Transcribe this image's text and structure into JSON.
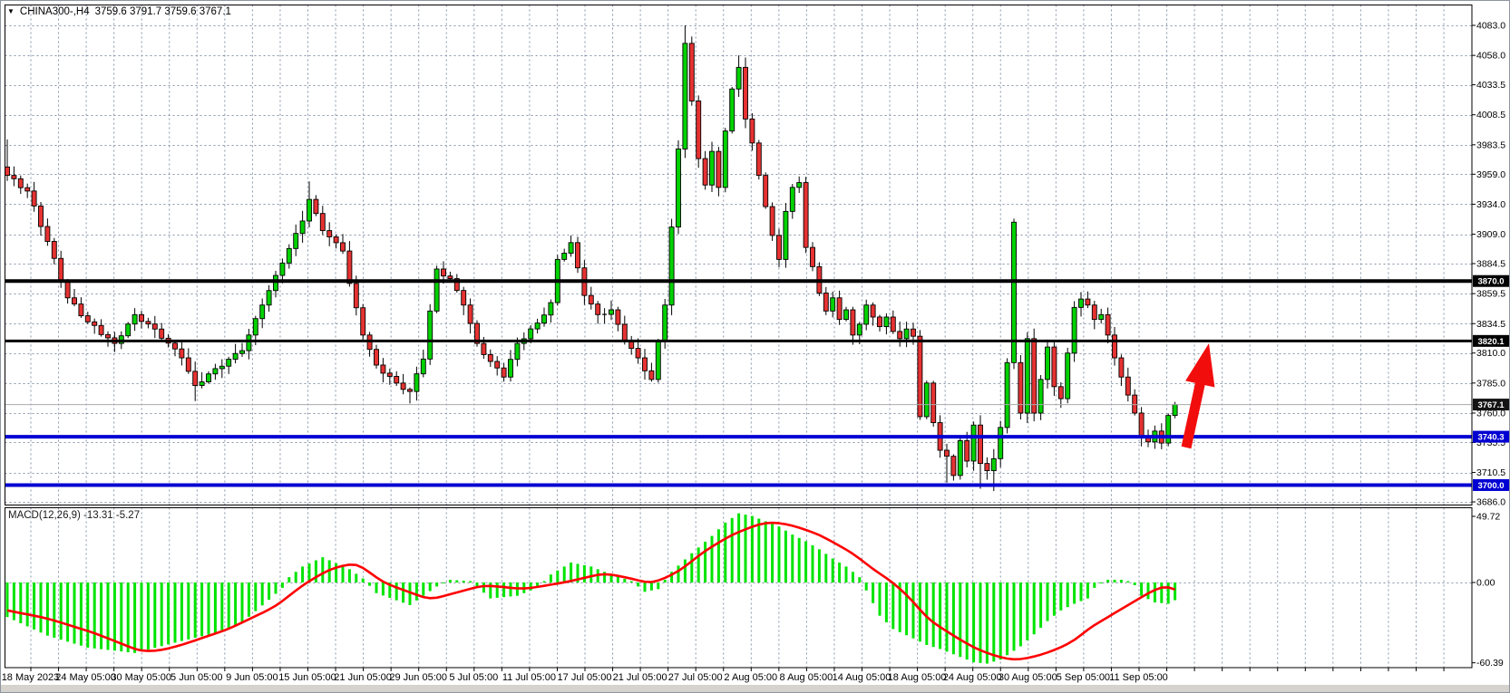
{
  "header": {
    "symbol_period": "CHINA300-,H4",
    "ohlc": "3759.6 3791.7 3759.6 3767.1",
    "open": 3759.6,
    "high": 3791.7,
    "low": 3759.6,
    "close": 3767.1
  },
  "price_axis": {
    "ticks": [
      "4083.0",
      "4058.0",
      "4033.5",
      "4008.5",
      "3983.5",
      "3959.0",
      "3934.0",
      "3909.0",
      "3884.5",
      "3859.5",
      "3834.5",
      "3810.0",
      "3785.0",
      "3760.0",
      "3735.5",
      "3710.5",
      "3686.0"
    ]
  },
  "time_axis": {
    "labels": [
      "18 May 2023",
      "24 May 05:00",
      "30 May 05:00",
      "5 Jun 05:00",
      "9 Jun 05:00",
      "15 Jun 05:00",
      "21 Jun 05:00",
      "29 Jun 05:00",
      "5 Jul 05:00",
      "11 Jul 05:00",
      "17 Jul 05:00",
      "21 Jul 05:00",
      "27 Jul 05:00",
      "2 Aug 05:00",
      "8 Aug 05:00",
      "14 Aug 05:00",
      "18 Aug 05:00",
      "24 Aug 05:00",
      "30 Aug 05:00",
      "5 Sep 05:00",
      "11 Sep 05:00"
    ]
  },
  "macd_panel": {
    "label": "MACD(12,26,9) -13.31 -5.27",
    "macd_value": -13.31,
    "signal_value": -5.27,
    "ticks": [
      "49.72",
      "0.00",
      "-60.39"
    ],
    "tick_values": [
      49.72,
      0.0,
      -60.39
    ]
  },
  "levels": [
    {
      "label": "3870.0",
      "price": 3870.0,
      "color": "#000000",
      "width": 4,
      "badge": "#000000"
    },
    {
      "label": "3820.1",
      "price": 3820.1,
      "color": "#000000",
      "width": 3,
      "badge": "#000000"
    },
    {
      "label": "3767.1",
      "price": 3767.1,
      "color": "#aaaaaa",
      "width": 1,
      "badge": "#141414",
      "current": true
    },
    {
      "label": "3740.3",
      "price": 3740.3,
      "color": "#0000d2",
      "width": 4,
      "badge": "#0000d2"
    },
    {
      "label": "3700.0",
      "price": 3700.0,
      "color": "#0000d2",
      "width": 4,
      "badge": "#0000d2"
    }
  ],
  "annotation_arrow": {
    "x_from": 1308,
    "y_from": 494,
    "x_to": 1333,
    "y_to": 379,
    "color": "#f20d0d",
    "direction": "up"
  },
  "colors": {
    "bull": "#00d200",
    "bear": "#e63232",
    "outline": "#000000",
    "grid": "#8795a8",
    "hist": "#00e400",
    "signal": "#ff0000",
    "badge_text": "#ffffff",
    "frame": "#8e959e",
    "bottom_strip": "#d6d3ce"
  },
  "chart_data": [
    {
      "type": "candlestick",
      "title": "CHINA300- H4 candlestick chart",
      "bars_total": 175,
      "visible_price_range": [
        3686.0,
        4094.0
      ],
      "y_tick_step": 24.6,
      "close_anchors": [
        [
          0,
          3958
        ],
        [
          3,
          3945
        ],
        [
          6,
          3903
        ],
        [
          9,
          3856
        ],
        [
          12,
          3836
        ],
        [
          16,
          3818
        ],
        [
          19,
          3842
        ],
        [
          22,
          3830
        ],
        [
          26,
          3806
        ],
        [
          28,
          3783
        ],
        [
          31,
          3797
        ],
        [
          35,
          3812
        ],
        [
          38,
          3850
        ],
        [
          41,
          3885
        ],
        [
          44,
          3920
        ],
        [
          45,
          3938
        ],
        [
          47,
          3912
        ],
        [
          50,
          3895
        ],
        [
          51,
          3868
        ],
        [
          53,
          3825
        ],
        [
          55,
          3800
        ],
        [
          58,
          3785
        ],
        [
          60,
          3778
        ],
        [
          62,
          3805
        ],
        [
          63,
          3845
        ],
        [
          64,
          3880
        ],
        [
          66,
          3872
        ],
        [
          68,
          3850
        ],
        [
          70,
          3818
        ],
        [
          72,
          3803
        ],
        [
          74,
          3790
        ],
        [
          76,
          3818
        ],
        [
          79,
          3835
        ],
        [
          81,
          3852
        ],
        [
          82,
          3888
        ],
        [
          84,
          3902
        ],
        [
          86,
          3858
        ],
        [
          88,
          3842
        ],
        [
          90,
          3846
        ],
        [
          92,
          3820
        ],
        [
          94,
          3806
        ],
        [
          96,
          3788
        ],
        [
          98,
          3850
        ],
        [
          99,
          3915
        ],
        [
          100,
          3980
        ],
        [
          101,
          4068
        ],
        [
          102,
          4020
        ],
        [
          103,
          3972
        ],
        [
          104,
          3950
        ],
        [
          105,
          3978
        ],
        [
          106,
          3948
        ],
        [
          107,
          3995
        ],
        [
          108,
          4030
        ],
        [
          109,
          4048
        ],
        [
          110,
          4005
        ],
        [
          111,
          3985
        ],
        [
          112,
          3958
        ],
        [
          113,
          3932
        ],
        [
          114,
          3908
        ],
        [
          115,
          3888
        ],
        [
          116,
          3928
        ],
        [
          117,
          3948
        ],
        [
          118,
          3952
        ],
        [
          119,
          3898
        ],
        [
          120,
          3882
        ],
        [
          121,
          3860
        ],
        [
          122,
          3845
        ],
        [
          123,
          3856
        ],
        [
          124,
          3838
        ],
        [
          125,
          3846
        ],
        [
          126,
          3825
        ],
        [
          127,
          3834
        ],
        [
          128,
          3850
        ],
        [
          129,
          3840
        ],
        [
          130,
          3832
        ],
        [
          131,
          3840
        ],
        [
          132,
          3828
        ],
        [
          133,
          3822
        ],
        [
          134,
          3830
        ],
        [
          135,
          3824
        ],
        [
          136,
          3757
        ],
        [
          137,
          3785
        ],
        [
          138,
          3752
        ],
        [
          139,
          3729
        ],
        [
          140,
          3724
        ],
        [
          141,
          3708
        ],
        [
          142,
          3737
        ],
        [
          143,
          3720
        ],
        [
          144,
          3750
        ],
        [
          145,
          3718
        ],
        [
          146,
          3712
        ],
        [
          147,
          3722
        ],
        [
          148,
          3748
        ],
        [
          149,
          3802
        ],
        [
          150,
          3919
        ],
        [
          151,
          3760
        ],
        [
          152,
          3822
        ],
        [
          153,
          3760
        ],
        [
          154,
          3788
        ],
        [
          155,
          3815
        ],
        [
          156,
          3782
        ],
        [
          157,
          3772
        ],
        [
          158,
          3810
        ],
        [
          159,
          3848
        ],
        [
          160,
          3855
        ],
        [
          161,
          3850
        ],
        [
          162,
          3838
        ],
        [
          163,
          3842
        ],
        [
          164,
          3825
        ],
        [
          165,
          3806
        ],
        [
          166,
          3790
        ],
        [
          167,
          3775
        ],
        [
          168,
          3760
        ],
        [
          169,
          3740
        ],
        [
          170,
          3736
        ],
        [
          171,
          3745
        ],
        [
          172,
          3735
        ],
        [
          173,
          3758
        ],
        [
          174,
          3767.1
        ]
      ],
      "open_overrides": {
        "0": 3965,
        "151": 3802
      },
      "wick_overrides": {
        "0": {
          "high": 3988
        },
        "28": {
          "low": 3770
        },
        "45": {
          "high": 3953
        },
        "60": {
          "low": 3768
        },
        "84": {
          "high": 3908
        },
        "101": {
          "high": 4083
        },
        "109": {
          "high": 4058
        },
        "140": {
          "low": 3702
        },
        "145": {
          "low": 3697
        },
        "147": {
          "low": 3695
        },
        "150": {
          "high": 3922
        }
      },
      "horizontal_levels": [
        3870.0,
        3820.1,
        3767.1,
        3740.3,
        3700.0
      ]
    },
    {
      "type": "bar",
      "name": "MACD(12,26,9) histogram",
      "current_value": -13.31,
      "ylim": [
        -60.39,
        49.72
      ],
      "anchors": [
        [
          0,
          -26
        ],
        [
          6,
          -40
        ],
        [
          12,
          -49
        ],
        [
          19,
          -53
        ],
        [
          26,
          -44
        ],
        [
          31,
          -38
        ],
        [
          35,
          -30
        ],
        [
          39,
          -13
        ],
        [
          41,
          -4
        ],
        [
          42,
          4
        ],
        [
          44,
          12
        ],
        [
          47,
          19
        ],
        [
          51,
          10
        ],
        [
          53,
          3
        ],
        [
          55,
          -8
        ],
        [
          60,
          -17
        ],
        [
          64,
          -3
        ],
        [
          66,
          2
        ],
        [
          69,
          1
        ],
        [
          72,
          -12
        ],
        [
          76,
          -10
        ],
        [
          79,
          -4
        ],
        [
          81,
          6
        ],
        [
          84,
          15
        ],
        [
          87,
          12
        ],
        [
          89,
          8
        ],
        [
          93,
          1
        ],
        [
          95,
          -7
        ],
        [
          97,
          -5
        ],
        [
          98,
          2
        ],
        [
          99,
          8
        ],
        [
          102,
          22
        ],
        [
          105,
          35
        ],
        [
          107,
          45
        ],
        [
          109,
          52
        ],
        [
          111,
          50
        ],
        [
          113,
          46
        ],
        [
          115,
          42
        ],
        [
          117,
          36
        ],
        [
          119,
          31
        ],
        [
          121,
          25
        ],
        [
          123,
          18
        ],
        [
          125,
          12
        ],
        [
          127,
          4
        ],
        [
          128,
          -6
        ],
        [
          130,
          -25
        ],
        [
          132,
          -35
        ],
        [
          135,
          -42
        ],
        [
          137,
          -47
        ],
        [
          139,
          -50
        ],
        [
          142,
          -56
        ],
        [
          144,
          -60
        ],
        [
          146,
          -61
        ],
        [
          148,
          -58
        ],
        [
          151,
          -48
        ],
        [
          153,
          -39
        ],
        [
          155,
          -29
        ],
        [
          157,
          -21
        ],
        [
          159,
          -16
        ],
        [
          161,
          -12
        ],
        [
          162,
          -4
        ],
        [
          163,
          0
        ],
        [
          164,
          2
        ],
        [
          166,
          2
        ],
        [
          167,
          1
        ],
        [
          168,
          -2
        ],
        [
          169,
          -10
        ],
        [
          171,
          -15
        ],
        [
          173,
          -16
        ],
        [
          174,
          -13.31
        ]
      ]
    },
    {
      "type": "line",
      "name": "MACD signal line",
      "current_value": -5.27,
      "anchors": [
        [
          0,
          -21
        ],
        [
          6,
          -27
        ],
        [
          13,
          -38
        ],
        [
          19,
          -50
        ],
        [
          20,
          -52
        ],
        [
          23,
          -51
        ],
        [
          26,
          -47
        ],
        [
          33,
          -35
        ],
        [
          40,
          -18
        ],
        [
          44,
          -2
        ],
        [
          48,
          10
        ],
        [
          52,
          15
        ],
        [
          56,
          0
        ],
        [
          63,
          -13
        ],
        [
          71,
          -2
        ],
        [
          77,
          -5
        ],
        [
          83,
          0
        ],
        [
          89,
          7
        ],
        [
          93,
          3
        ],
        [
          96,
          -1
        ],
        [
          100,
          8
        ],
        [
          104,
          24
        ],
        [
          108,
          36
        ],
        [
          112,
          44
        ],
        [
          114,
          45.5
        ],
        [
          117,
          43
        ],
        [
          121,
          36
        ],
        [
          126,
          22
        ],
        [
          129,
          10
        ],
        [
          132,
          0
        ],
        [
          135,
          -14
        ],
        [
          137,
          -27
        ],
        [
          141,
          -40
        ],
        [
          144,
          -49
        ],
        [
          147,
          -55
        ],
        [
          150,
          -58.5
        ],
        [
          153,
          -56
        ],
        [
          156,
          -51
        ],
        [
          159,
          -44
        ],
        [
          161,
          -35
        ],
        [
          164,
          -26
        ],
        [
          167,
          -17
        ],
        [
          170,
          -8
        ],
        [
          172,
          -3
        ],
        [
          173,
          -2
        ],
        [
          174,
          -5.27
        ]
      ]
    }
  ]
}
